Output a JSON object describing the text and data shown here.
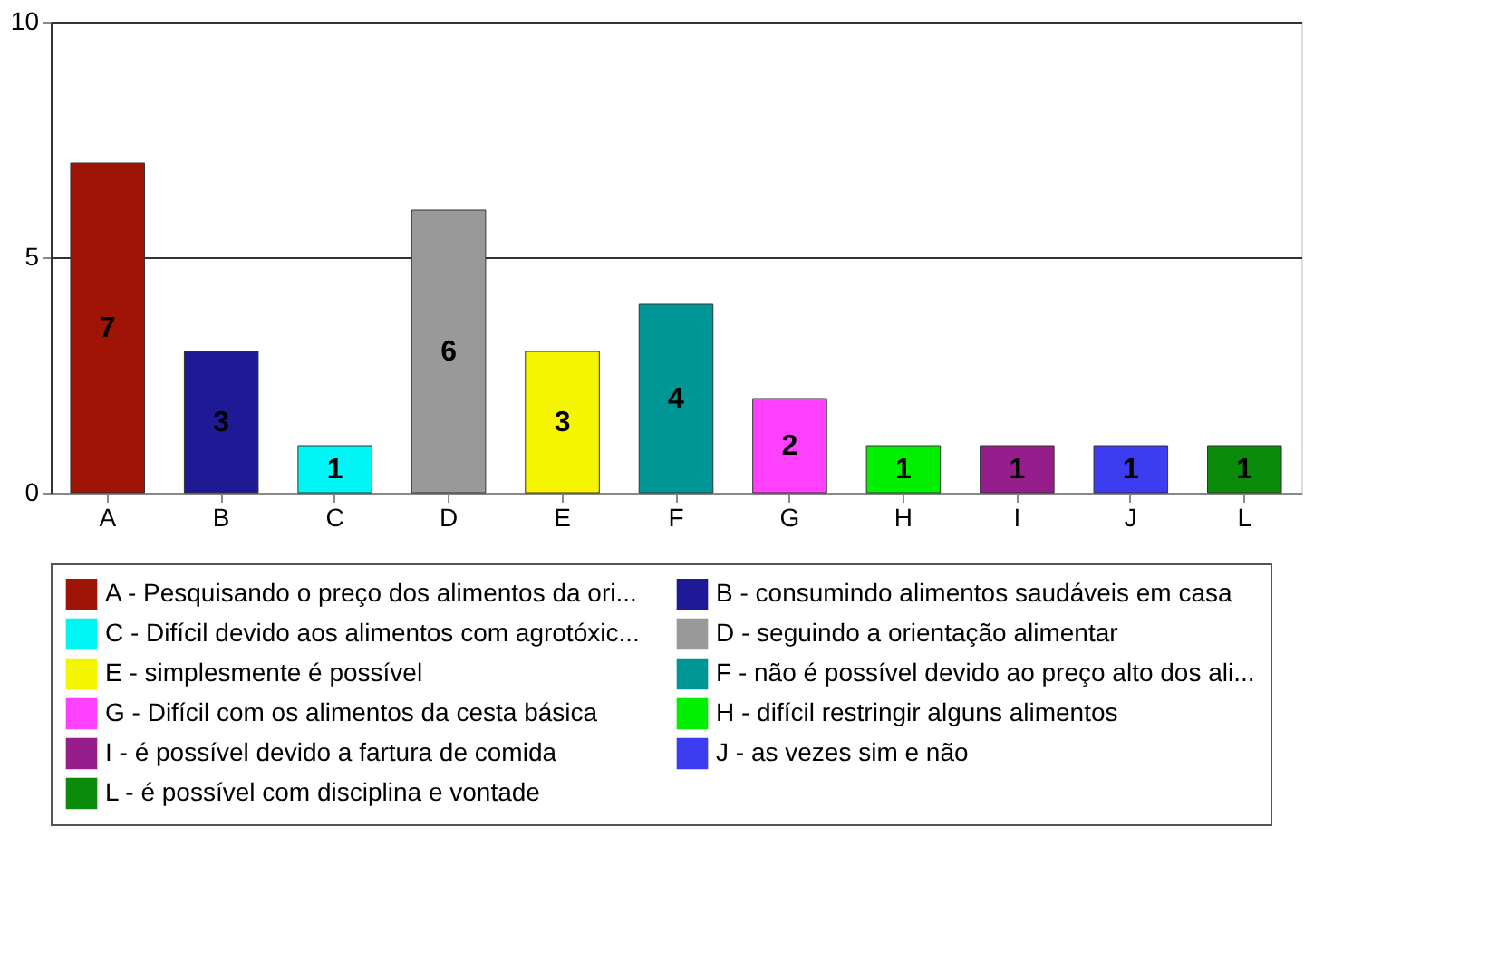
{
  "chart_data": {
    "type": "bar",
    "categories": [
      "A",
      "B",
      "C",
      "D",
      "E",
      "F",
      "G",
      "H",
      "I",
      "J",
      "L"
    ],
    "series": [
      {
        "name": "A - Pesquisando o preço dos alimentos da ori...",
        "color": "#a01408",
        "values": [
          7,
          null,
          null,
          null,
          null,
          null,
          null,
          null,
          null,
          null,
          null
        ]
      },
      {
        "name": "B - consumindo alimentos saudáveis em casa",
        "color": "#1e1a96",
        "values": [
          null,
          3,
          null,
          null,
          null,
          null,
          null,
          null,
          null,
          null,
          null
        ]
      },
      {
        "name": "C - Difícil devido aos alimentos com agrotóxic...",
        "color": "#00f5f5",
        "values": [
          null,
          null,
          1,
          null,
          null,
          null,
          null,
          null,
          null,
          null,
          null
        ]
      },
      {
        "name": "D - seguindo a orientação alimentar",
        "color": "#999999",
        "values": [
          null,
          null,
          null,
          6,
          null,
          null,
          null,
          null,
          null,
          null,
          null
        ]
      },
      {
        "name": "E - simplesmente é possível",
        "color": "#f5f500",
        "values": [
          null,
          null,
          null,
          null,
          3,
          null,
          null,
          null,
          null,
          null,
          null
        ]
      },
      {
        "name": "F - não é possível devido ao preço alto dos ali...",
        "color": "#009696",
        "values": [
          null,
          null,
          null,
          null,
          null,
          4,
          null,
          null,
          null,
          null,
          null
        ]
      },
      {
        "name": "G - Difícil com os alimentos da cesta básica",
        "color": "#ff40ff",
        "values": [
          null,
          null,
          null,
          null,
          null,
          null,
          2,
          null,
          null,
          null,
          null
        ]
      },
      {
        "name": "H - difícil restringir alguns alimentos",
        "color": "#00f000",
        "values": [
          null,
          null,
          null,
          null,
          null,
          null,
          null,
          1,
          null,
          null,
          null
        ]
      },
      {
        "name": "I - é possível devido a fartura de comida",
        "color": "#961e8c",
        "values": [
          null,
          null,
          null,
          null,
          null,
          null,
          null,
          null,
          1,
          null,
          null
        ]
      },
      {
        "name": "J - as vezes sim e não",
        "color": "#3c3cf0",
        "values": [
          null,
          null,
          null,
          null,
          null,
          null,
          null,
          null,
          null,
          1,
          null
        ]
      },
      {
        "name": "L - é possível com disciplina e vontade",
        "color": "#0a8c0a",
        "values": [
          null,
          null,
          null,
          null,
          null,
          null,
          null,
          null,
          null,
          null,
          1
        ]
      }
    ],
    "ylim": [
      0,
      10
    ],
    "yticks": [
      0,
      5,
      10
    ],
    "grid": "y",
    "legend": "bottom",
    "data_labels": true
  }
}
